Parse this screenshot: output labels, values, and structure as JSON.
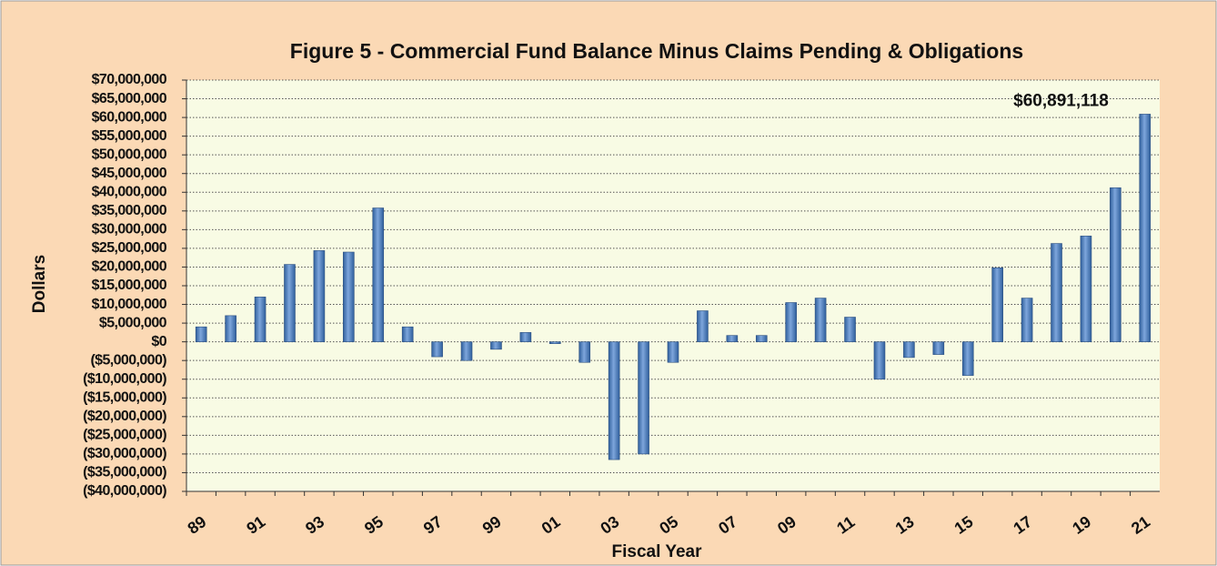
{
  "chart_data": {
    "type": "bar",
    "title": "Figure 5 - Commercial Fund Balance Minus Claims Pending & Obligations",
    "xlabel": "Fiscal Year",
    "ylabel": "Dollars",
    "categories": [
      "89",
      null,
      "91",
      null,
      "93",
      null,
      "95",
      null,
      "97",
      null,
      "99",
      null,
      "01",
      null,
      "03",
      null,
      "05",
      null,
      "07",
      null,
      "09",
      null,
      "11",
      null,
      "13",
      null,
      "15",
      null,
      "17",
      null,
      "19",
      null,
      "21"
    ],
    "values": [
      4000000,
      7000000,
      12000000,
      20700000,
      24400000,
      24000000,
      35800000,
      4000000,
      -4000000,
      -5000000,
      -2000000,
      2500000,
      -500000,
      -5500000,
      -31500000,
      -30000000,
      -5500000,
      8300000,
      1700000,
      1700000,
      10500000,
      11700000,
      6600000,
      -10000000,
      -4200000,
      -3400000,
      -9000000,
      19800000,
      11700000,
      26300000,
      28300000,
      41200000,
      60891118
    ],
    "value_labels": [
      null,
      null,
      null,
      null,
      null,
      null,
      null,
      null,
      null,
      null,
      null,
      null,
      null,
      null,
      null,
      null,
      null,
      null,
      null,
      null,
      null,
      null,
      null,
      null,
      null,
      null,
      null,
      null,
      null,
      null,
      null,
      null,
      "$60,891,118"
    ],
    "color": "#4f81bd",
    "ylim": [
      -40000000,
      70000000
    ],
    "yticks": [
      {
        "value": -40000000,
        "label": "($40,000,000)"
      },
      {
        "value": -35000000,
        "label": "($35,000,000)"
      },
      {
        "value": -30000000,
        "label": "($30,000,000)"
      },
      {
        "value": -25000000,
        "label": "($25,000,000)"
      },
      {
        "value": -20000000,
        "label": "($20,000,000)"
      },
      {
        "value": -15000000,
        "label": "($15,000,000)"
      },
      {
        "value": -10000000,
        "label": "($10,000,000)"
      },
      {
        "value": -5000000,
        "label": "($5,000,000)"
      },
      {
        "value": 0,
        "label": "$0"
      },
      {
        "value": 5000000,
        "label": "$5,000,000"
      },
      {
        "value": 10000000,
        "label": "$10,000,000"
      },
      {
        "value": 15000000,
        "label": "$15,000,000"
      },
      {
        "value": 20000000,
        "label": "$20,000,000"
      },
      {
        "value": 25000000,
        "label": "$25,000,000"
      },
      {
        "value": 30000000,
        "label": "$30,000,000"
      },
      {
        "value": 35000000,
        "label": "$35,000,000"
      },
      {
        "value": 40000000,
        "label": "$40,000,000"
      },
      {
        "value": 45000000,
        "label": "$45,000,000"
      },
      {
        "value": 50000000,
        "label": "$50,000,000"
      },
      {
        "value": 55000000,
        "label": "$55,000,000"
      },
      {
        "value": 60000000,
        "label": "$60,000,000"
      },
      {
        "value": 65000000,
        "label": "$65,000,000"
      },
      {
        "value": 70000000,
        "label": "$70,000,000"
      }
    ],
    "grid": true
  }
}
